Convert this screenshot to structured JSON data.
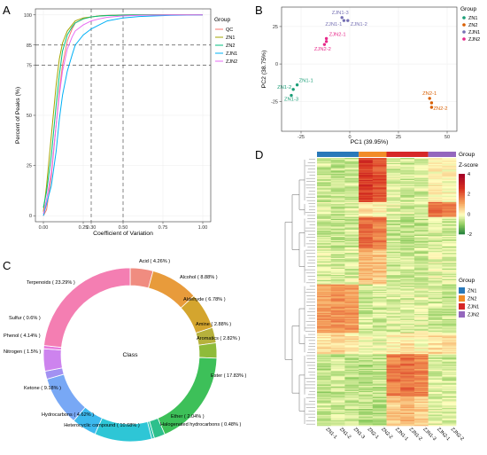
{
  "panels": {
    "a": {
      "letter": "A"
    },
    "b": {
      "letter": "B"
    },
    "c": {
      "letter": "C"
    },
    "d": {
      "letter": "D"
    }
  },
  "chart_data": [
    {
      "id": "A",
      "type": "line",
      "xlabel": "Coefficient of Variation",
      "ylabel": "Percent of Peaks (%)",
      "xlim": [
        -0.05,
        1.05
      ],
      "ylim": [
        -3,
        103
      ],
      "x_ticks": [
        0.0,
        0.25,
        0.3,
        0.5,
        0.75,
        1.0
      ],
      "x_tick_labels": [
        "0.00",
        "0.25",
        "0.30",
        "0.50",
        "0.75",
        "1.00"
      ],
      "y_ticks": [
        0,
        25,
        50,
        75,
        85,
        100
      ],
      "y_tick_labels": [
        "0",
        "25",
        "50",
        "75",
        "85",
        "100"
      ],
      "reference_lines": {
        "h": [
          75,
          85
        ],
        "v": [
          0.3,
          0.5
        ]
      },
      "grid": true,
      "legend": {
        "title": "Group",
        "position": "right"
      },
      "colors": [
        "#F8766D",
        "#A3A500",
        "#00BF7D",
        "#00B0F6",
        "#E76BF3"
      ],
      "x": [
        0.0,
        0.02,
        0.05,
        0.08,
        0.1,
        0.12,
        0.15,
        0.18,
        0.2,
        0.25,
        0.3,
        0.35,
        0.4,
        0.5,
        0.6,
        0.8,
        1.0
      ],
      "series": [
        {
          "name": "QC",
          "values": [
            0,
            3,
            20,
            45,
            62,
            75,
            87,
            93,
            96,
            98,
            99,
            99.5,
            99.8,
            100,
            100,
            100,
            100
          ]
        },
        {
          "name": "ZN1",
          "values": [
            2,
            15,
            40,
            65,
            78,
            86,
            92,
            95,
            97,
            98.5,
            99,
            99.5,
            99.7,
            99.9,
            100,
            100,
            100
          ]
        },
        {
          "name": "ZN2",
          "values": [
            4,
            12,
            30,
            55,
            70,
            82,
            90,
            94,
            96,
            98,
            99,
            99.4,
            99.7,
            99.9,
            100,
            100,
            100
          ]
        },
        {
          "name": "ZJN1",
          "values": [
            0,
            6,
            15,
            32,
            48,
            60,
            72,
            80,
            85,
            90,
            93,
            95,
            97,
            98.5,
            99.2,
            99.8,
            100
          ]
        },
        {
          "name": "ZJN2",
          "values": [
            1,
            8,
            22,
            45,
            60,
            72,
            83,
            89,
            92,
            95,
            97,
            98,
            98.8,
            99.5,
            99.8,
            100,
            100
          ]
        }
      ]
    },
    {
      "id": "B",
      "type": "scatter",
      "xlabel": "PC1 (39.95%)",
      "ylabel": "PC2 (38.75%)",
      "xlim": [
        -35,
        55
      ],
      "ylim": [
        -45,
        38
      ],
      "x_ticks": [
        -25,
        0,
        25,
        50
      ],
      "y_ticks": [
        -25,
        0,
        25
      ],
      "grid": true,
      "legend": {
        "title": "Group",
        "position": "right"
      },
      "series": [
        {
          "name": "ZN1",
          "color": "#1A9E77",
          "points": [
            {
              "label": "ZN1-1",
              "x": -27,
              "y": -14
            },
            {
              "label": "ZN1-2",
              "x": -29,
              "y": -17
            },
            {
              "label": "ZN1-3",
              "x": -30,
              "y": -21
            }
          ]
        },
        {
          "name": "ZN2",
          "color": "#D95F02",
          "points": [
            {
              "label": "ZN2-1",
              "x": 41,
              "y": -23
            },
            {
              "label": "ZN2-2",
              "x": 42,
              "y": -26
            },
            {
              "label": "",
              "x": 42,
              "y": -29
            }
          ]
        },
        {
          "name": "ZJN1",
          "color": "#7570B3",
          "points": [
            {
              "label": "ZJN1-3",
              "x": -4,
              "y": 31
            },
            {
              "label": "ZJN1-1",
              "x": -3,
              "y": 29
            },
            {
              "label": "ZJN1-2",
              "x": -1,
              "y": 29
            }
          ]
        },
        {
          "name": "ZJN2",
          "color": "#E7298A",
          "points": [
            {
              "label": "ZJN2-1",
              "x": -12,
              "y": 17
            },
            {
              "label": "ZJN2-2",
              "x": -13,
              "y": 13
            },
            {
              "label": "",
              "x": -12,
              "y": 15
            }
          ]
        }
      ]
    },
    {
      "id": "C",
      "type": "pie",
      "donut": true,
      "center_label": "Class",
      "slices": [
        {
          "label": "Acid ( 4.26% )",
          "value": 4.26,
          "color": "#F08C80"
        },
        {
          "label": "Alcohol ( 8.88% )",
          "value": 8.88,
          "color": "#E89B3B"
        },
        {
          "label": "Aldehyde ( 6.78% )",
          "value": 6.78,
          "color": "#D4A52E"
        },
        {
          "label": "Amine ( 2.88% )",
          "value": 2.88,
          "color": "#B6B13C"
        },
        {
          "label": "Aromatics ( 2.82% )",
          "value": 2.82,
          "color": "#8EBB3A"
        },
        {
          "label": "Ester ( 17.83% )",
          "value": 17.83,
          "color": "#3DC059"
        },
        {
          "label": "Ether ( 2.04% )",
          "value": 2.04,
          "color": "#2DC08C"
        },
        {
          "label": "Halogenated hydrocarbons ( 0.48% )",
          "value": 0.48,
          "color": "#27C2AE"
        },
        {
          "label": "Heterocyclic compound ( 10.68% )",
          "value": 10.68,
          "color": "#2EC6D6"
        },
        {
          "label": "Hydrocarbons ( 4.62% )",
          "value": 4.62,
          "color": "#3DB9EE"
        },
        {
          "label": "Ketone ( 9.18% )",
          "value": 9.18,
          "color": "#78A8F5"
        },
        {
          "label": "Nitrogen ( 1.5% )",
          "value": 1.5,
          "color": "#A291F2"
        },
        {
          "label": "Phenol ( 4.14% )",
          "value": 4.14,
          "color": "#CD83EE"
        },
        {
          "label": "Sulfur ( 0.6% )",
          "value": 0.6,
          "color": "#E779DD"
        },
        {
          "label": "Terpenoids ( 23.29% )",
          "value": 23.29,
          "color": "#F47EB2"
        }
      ]
    },
    {
      "id": "D",
      "type": "heatmap",
      "columns": [
        "ZN1-1",
        "ZN1-2",
        "ZN1-3",
        "ZN2-1",
        "ZN2-2",
        "ZJN1-1",
        "ZJN1-2",
        "ZJN1-3",
        "ZJN2-1",
        "ZJN2-2"
      ],
      "group_annotation_title": "Group",
      "groups": [
        {
          "name": "ZN1",
          "color": "#2979B9",
          "span": 3
        },
        {
          "name": "ZN2",
          "color": "#F28C28",
          "span": 2
        },
        {
          "name": "ZJN1",
          "color": "#D62728",
          "span": 3
        },
        {
          "name": "ZJN2",
          "color": "#9467BD",
          "span": 2
        }
      ],
      "colorbar": {
        "title": "Z-score",
        "min": -2,
        "max": 4,
        "ticks": [
          4,
          2,
          0,
          -2
        ],
        "colors": [
          "#1A7A3A",
          "#8CCB5E",
          "#FFFFBF",
          "#F5A05A",
          "#D7301F",
          "#A50026"
        ]
      },
      "row_blocks": [
        {
          "rows": 42,
          "values": [
            -0.4,
            -0.5,
            -0.4,
            2.5,
            2.2,
            -0.3,
            -0.4,
            -0.3,
            0.2,
            0.1
          ]
        },
        {
          "rows": 14,
          "values": [
            -0.3,
            -0.4,
            -0.3,
            0.3,
            0.2,
            -0.2,
            -0.3,
            -0.2,
            1.8,
            1.5
          ]
        },
        {
          "rows": 30,
          "values": [
            -0.5,
            -0.5,
            -0.4,
            1.9,
            1.6,
            -0.5,
            -0.6,
            -0.5,
            -0.3,
            -0.4
          ]
        },
        {
          "rows": 34,
          "values": [
            -0.3,
            -0.3,
            -0.3,
            0.9,
            0.8,
            -0.4,
            -0.4,
            -0.4,
            -0.2,
            -0.3
          ]
        },
        {
          "rows": 46,
          "values": [
            1.2,
            1.4,
            1.3,
            -0.4,
            -0.4,
            -0.3,
            -0.3,
            -0.2,
            -0.4,
            -0.5
          ]
        },
        {
          "rows": 20,
          "values": [
            0.4,
            0.5,
            0.3,
            0.0,
            -0.2,
            0.2,
            0.3,
            0.1,
            0.5,
            0.4
          ]
        },
        {
          "rows": 40,
          "values": [
            -0.6,
            -0.5,
            -0.6,
            -0.6,
            -0.5,
            1.6,
            1.8,
            1.5,
            -0.3,
            -0.4
          ]
        },
        {
          "rows": 28,
          "values": [
            -0.4,
            -0.4,
            -0.5,
            -0.6,
            -0.6,
            0.7,
            0.9,
            0.6,
            -0.2,
            -0.3
          ]
        }
      ]
    }
  ]
}
